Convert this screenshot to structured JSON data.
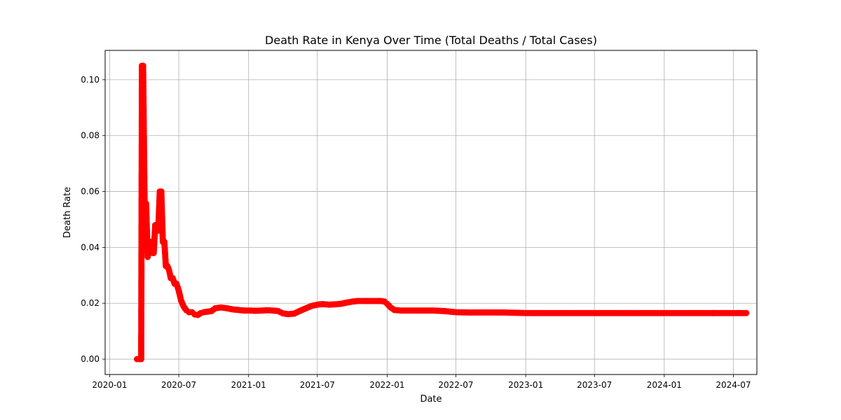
{
  "chart_data": {
    "type": "line",
    "title": "Death Rate in Kenya Over Time (Total Deaths / Total Cases)",
    "xlabel": "Date",
    "ylabel": "Death Rate",
    "x_axis": "date",
    "xlim": [
      "2019-12-20",
      "2024-09-01"
    ],
    "ylim": [
      -0.0055,
      0.1105
    ],
    "x_ticks": [
      "2020-01",
      "2020-07",
      "2021-01",
      "2021-07",
      "2022-01",
      "2022-07",
      "2023-01",
      "2023-07",
      "2024-01",
      "2024-07"
    ],
    "y_ticks": [
      "0.00",
      "0.02",
      "0.04",
      "0.06",
      "0.08",
      "0.10"
    ],
    "grid": true,
    "line_color": "#ff0000",
    "marker": "circle",
    "series": [
      {
        "x": [
          "2020-03-13",
          "2020-03-20",
          "2020-03-24",
          "2020-03-26",
          "2020-03-29",
          "2020-04-02",
          "2020-04-06",
          "2020-04-10",
          "2020-04-14",
          "2020-04-18",
          "2020-04-22",
          "2020-04-26",
          "2020-04-30",
          "2020-05-04",
          "2020-05-08",
          "2020-05-12",
          "2020-05-16",
          "2020-05-20",
          "2020-05-24",
          "2020-05-28",
          "2020-06-01",
          "2020-06-05",
          "2020-06-10",
          "2020-06-15",
          "2020-06-20",
          "2020-06-25",
          "2020-07-01",
          "2020-07-07",
          "2020-07-14",
          "2020-07-21",
          "2020-07-28",
          "2020-08-05",
          "2020-08-12",
          "2020-08-20",
          "2020-08-28",
          "2020-09-05",
          "2020-09-15",
          "2020-09-25",
          "2020-10-05",
          "2020-10-20",
          "2020-11-05",
          "2020-11-20",
          "2020-12-05",
          "2020-12-20",
          "2021-01-05",
          "2021-01-20",
          "2021-02-05",
          "2021-02-20",
          "2021-03-05",
          "2021-03-20",
          "2021-04-01",
          "2021-04-15",
          "2021-05-01",
          "2021-05-15",
          "2021-06-01",
          "2021-06-15",
          "2021-07-01",
          "2021-07-15",
          "2021-08-01",
          "2021-08-15",
          "2021-09-01",
          "2021-09-15",
          "2021-10-01",
          "2021-10-15",
          "2021-11-01",
          "2021-11-15",
          "2021-12-01",
          "2021-12-15",
          "2021-12-25",
          "2022-01-01",
          "2022-01-10",
          "2022-01-20",
          "2022-02-05",
          "2022-03-01",
          "2022-04-01",
          "2022-05-01",
          "2022-06-01",
          "2022-07-01",
          "2022-08-01",
          "2022-09-01",
          "2022-10-01",
          "2022-11-01",
          "2022-12-01",
          "2023-01-01",
          "2023-03-01",
          "2023-05-01",
          "2023-07-01",
          "2023-09-01",
          "2023-11-01",
          "2024-01-01",
          "2024-03-01",
          "2024-05-01",
          "2024-07-01",
          "2024-08-04"
        ],
        "y": [
          0.0,
          0.0,
          0.0,
          0.105,
          0.105,
          0.0556,
          0.0556,
          0.0366,
          0.042,
          0.042,
          0.038,
          0.038,
          0.048,
          0.046,
          0.046,
          0.06,
          0.06,
          0.042,
          0.042,
          0.0333,
          0.0333,
          0.032,
          0.029,
          0.029,
          0.027,
          0.027,
          0.0245,
          0.021,
          0.0188,
          0.0175,
          0.0168,
          0.0168,
          0.016,
          0.0158,
          0.0165,
          0.0168,
          0.017,
          0.0172,
          0.0182,
          0.0185,
          0.0182,
          0.0178,
          0.0176,
          0.0174,
          0.0174,
          0.0173,
          0.0174,
          0.0175,
          0.0174,
          0.0172,
          0.0164,
          0.0161,
          0.0163,
          0.0172,
          0.0182,
          0.019,
          0.0195,
          0.0197,
          0.0195,
          0.0196,
          0.0198,
          0.0202,
          0.0206,
          0.0208,
          0.0208,
          0.0208,
          0.0208,
          0.0208,
          0.0206,
          0.0198,
          0.0185,
          0.0176,
          0.0174,
          0.0174,
          0.0174,
          0.0174,
          0.0172,
          0.0168,
          0.0167,
          0.0167,
          0.0167,
          0.0167,
          0.0166,
          0.0165,
          0.0165,
          0.0165,
          0.0165,
          0.0165,
          0.0165,
          0.0165,
          0.0165,
          0.0165,
          0.0165,
          0.0165
        ]
      }
    ]
  }
}
